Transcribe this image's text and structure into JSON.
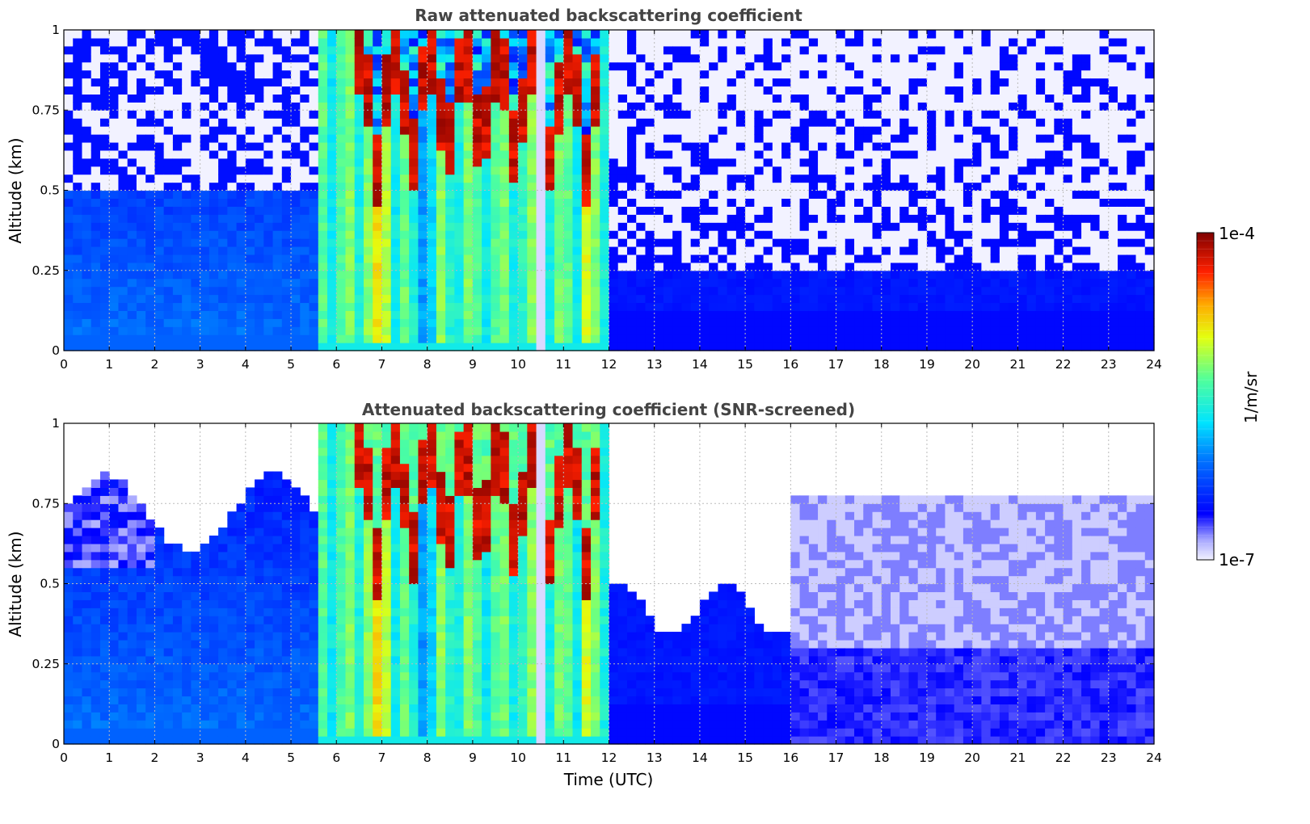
{
  "chart_data": [
    {
      "type": "heatmap",
      "title": "Raw attenuated backscattering coefficient",
      "xlabel": "",
      "ylabel": "Altitude (km)",
      "xlim": [
        0,
        24
      ],
      "ylim": [
        0,
        1
      ],
      "x_ticks": [
        "0",
        "1",
        "2",
        "3",
        "4",
        "5",
        "6",
        "7",
        "8",
        "9",
        "10",
        "11",
        "12",
        "13",
        "14",
        "15",
        "16",
        "17",
        "18",
        "19",
        "20",
        "21",
        "22",
        "23",
        "24"
      ],
      "y_ticks": [
        "0",
        "0.25",
        "0.5",
        "0.75",
        "1"
      ],
      "grid": true,
      "screened": false
    },
    {
      "type": "heatmap",
      "title": "Attenuated backscattering coefficient (SNR-screened)",
      "xlabel": "Time (UTC)",
      "ylabel": "Altitude (km)",
      "xlim": [
        0,
        24
      ],
      "ylim": [
        0,
        1
      ],
      "x_ticks": [
        "0",
        "1",
        "2",
        "3",
        "4",
        "5",
        "6",
        "7",
        "8",
        "9",
        "10",
        "11",
        "12",
        "13",
        "14",
        "15",
        "16",
        "17",
        "18",
        "19",
        "20",
        "21",
        "22",
        "23",
        "24"
      ],
      "y_ticks": [
        "0",
        "0.25",
        "0.5",
        "0.75",
        "1"
      ],
      "grid": true,
      "screened": true
    }
  ],
  "colorbar": {
    "label": "1/m/sr",
    "max_label": "1e-4",
    "min_label": "1e-7",
    "scale": "log",
    "range": [
      1e-07,
      0.0001
    ],
    "colormap": "jet"
  },
  "colors": {
    "title": "#444444",
    "grid": "#bbbbbb",
    "axis": "#000000"
  }
}
